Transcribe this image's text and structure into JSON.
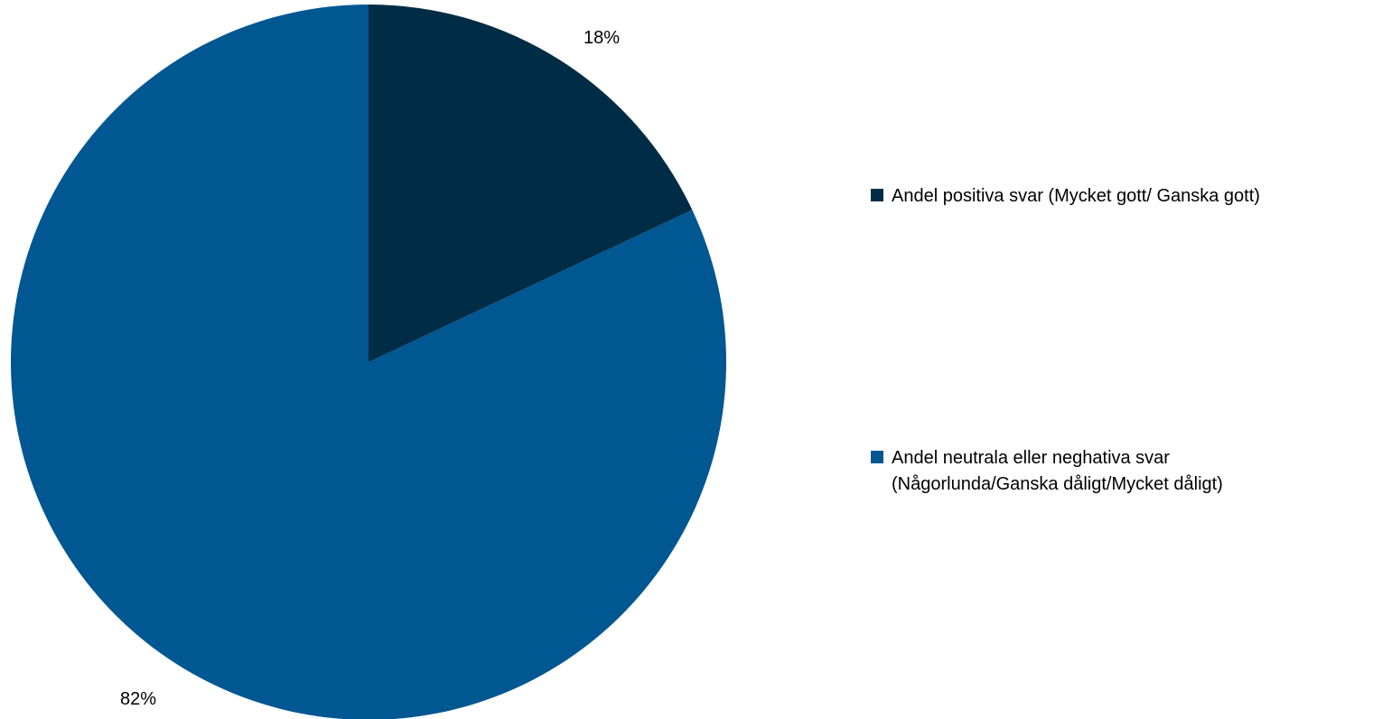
{
  "chart_data": {
    "type": "pie",
    "slices": [
      {
        "label_lines": [
          "Andel positiva svar (Mycket gott/ Ganska gott)"
        ],
        "value": 18,
        "data_label": "18%",
        "color": "#002D45"
      },
      {
        "label_lines": [
          "Andel neutrala eller neghativa svar",
          "(Någorlunda/Ganska dåligt/Mycket dåligt)"
        ],
        "value": 82,
        "data_label": "82%",
        "color": "#005792"
      }
    ],
    "start_angle_deg": 0,
    "direction": "clockwise",
    "legend_position": "right"
  }
}
